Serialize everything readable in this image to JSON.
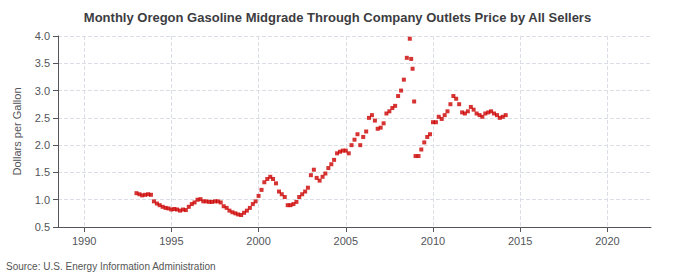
{
  "chart_data": {
    "type": "scatter",
    "title": "Monthly Oregon Gasoline Midgrade Through Company Outlets Price by All Sellers",
    "ylabel": "Dollars per Gallon",
    "annotation": "Source: U.S. Energy Information Administration",
    "color": "#cc0000",
    "marker": "square",
    "grid": true,
    "xlim": [
      1988.5,
      2022.5
    ],
    "ylim": [
      0.5,
      4.0
    ],
    "xticks": [
      1990,
      1995,
      2000,
      2005,
      2010,
      2015,
      2020
    ],
    "yticks": [
      0.5,
      {
        "value": 1.0,
        "label": "1.0"
      },
      1.5,
      {
        "value": 2.0,
        "label": "2.0"
      },
      2.5,
      {
        "value": 3.0,
        "label": "3.0"
      },
      3.5,
      {
        "value": 4.0,
        "label": "4.0"
      }
    ],
    "x": [
      1993.0,
      1993.17,
      1993.33,
      1993.5,
      1993.67,
      1993.83,
      1994.0,
      1994.17,
      1994.33,
      1994.5,
      1994.67,
      1994.83,
      1995.0,
      1995.17,
      1995.33,
      1995.5,
      1995.67,
      1995.83,
      1996.0,
      1996.17,
      1996.33,
      1996.5,
      1996.67,
      1996.83,
      1997.0,
      1997.17,
      1997.33,
      1997.5,
      1997.67,
      1997.83,
      1998.0,
      1998.17,
      1998.33,
      1998.5,
      1998.67,
      1998.83,
      1999.0,
      1999.17,
      1999.33,
      1999.5,
      1999.67,
      1999.83,
      2000.0,
      2000.17,
      2000.33,
      2000.5,
      2000.67,
      2000.83,
      2001.0,
      2001.17,
      2001.33,
      2001.5,
      2001.67,
      2001.83,
      2002.0,
      2002.17,
      2002.33,
      2002.5,
      2002.67,
      2002.83,
      2003.0,
      2003.17,
      2003.33,
      2003.5,
      2003.67,
      2003.83,
      2004.0,
      2004.17,
      2004.33,
      2004.5,
      2004.67,
      2004.83,
      2005.0,
      2005.17,
      2005.33,
      2005.5,
      2005.67,
      2005.83,
      2006.0,
      2006.17,
      2006.33,
      2006.5,
      2006.67,
      2006.83,
      2007.0,
      2007.17,
      2007.33,
      2007.5,
      2007.67,
      2007.83,
      2008.0,
      2008.17,
      2008.33,
      2008.5,
      2008.67,
      2008.75,
      2008.83,
      2008.92,
      2009.0,
      2009.17,
      2009.33,
      2009.5,
      2009.67,
      2009.83,
      2010.0,
      2010.17,
      2010.33,
      2010.5,
      2010.67,
      2010.83,
      2011.0,
      2011.17,
      2011.33,
      2011.5,
      2011.67,
      2011.83,
      2012.0,
      2012.17,
      2012.33,
      2012.5,
      2012.67,
      2012.83,
      2013.0,
      2013.17,
      2013.33,
      2013.5,
      2013.67,
      2013.83,
      2014.0,
      2014.17
    ],
    "values": [
      1.12,
      1.1,
      1.08,
      1.09,
      1.1,
      1.09,
      0.97,
      0.93,
      0.9,
      0.87,
      0.85,
      0.84,
      0.82,
      0.83,
      0.82,
      0.8,
      0.82,
      0.81,
      0.87,
      0.92,
      0.95,
      1.0,
      1.01,
      0.97,
      0.97,
      0.96,
      0.96,
      0.97,
      0.97,
      0.95,
      0.88,
      0.85,
      0.8,
      0.77,
      0.75,
      0.73,
      0.72,
      0.76,
      0.8,
      0.85,
      0.92,
      0.97,
      1.07,
      1.18,
      1.32,
      1.38,
      1.42,
      1.38,
      1.3,
      1.15,
      1.1,
      1.05,
      0.9,
      0.9,
      0.92,
      0.96,
      1.05,
      1.1,
      1.15,
      1.22,
      1.45,
      1.55,
      1.4,
      1.35,
      1.42,
      1.48,
      1.58,
      1.65,
      1.73,
      1.85,
      1.88,
      1.9,
      1.9,
      1.85,
      2.0,
      2.1,
      2.2,
      2.0,
      2.15,
      2.25,
      2.5,
      2.55,
      2.45,
      2.3,
      2.32,
      2.4,
      2.58,
      2.62,
      2.68,
      2.72,
      2.9,
      3.0,
      3.2,
      3.6,
      3.95,
      3.58,
      3.4,
      2.8,
      1.8,
      1.8,
      1.92,
      2.05,
      2.15,
      2.2,
      2.42,
      2.42,
      2.52,
      2.48,
      2.55,
      2.62,
      2.75,
      2.9,
      2.85,
      2.75,
      2.6,
      2.58,
      2.62,
      2.7,
      2.65,
      2.58,
      2.55,
      2.52,
      2.58,
      2.6,
      2.62,
      2.58,
      2.55,
      2.5,
      2.52,
      2.55
    ]
  }
}
